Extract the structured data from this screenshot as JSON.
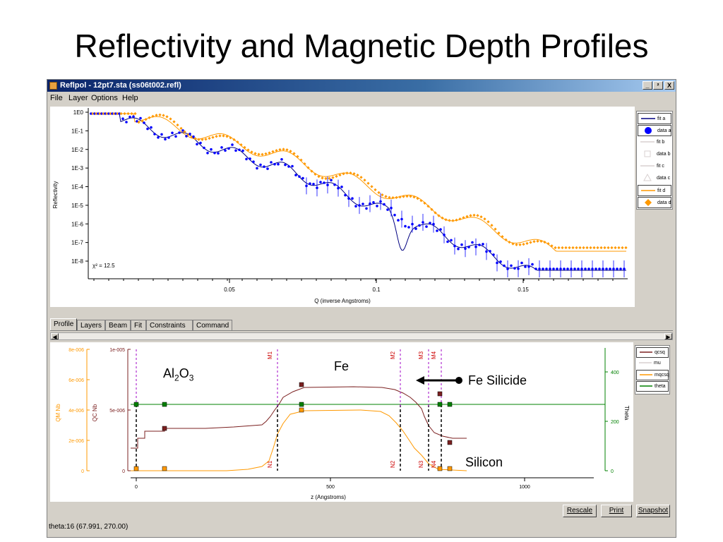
{
  "slide": {
    "title": "Reflectivity and Magnetic Depth Profiles"
  },
  "window": {
    "title": "Reflpol - 12pt7.sta (ss06t002.refl)",
    "controls": [
      "_",
      "²",
      "X"
    ],
    "menu": [
      "File",
      "Layer",
      "Options",
      "Help"
    ]
  },
  "refl_plot": {
    "chi2": "χ² = 12.5",
    "ylabel": "Reflectivity",
    "xlabel": "Q (inverse Angstroms)",
    "yticks": [
      "1E0",
      "1E-1",
      "1E-2",
      "1E-3",
      "1E-4",
      "1E-5",
      "1E-6",
      "1E-7",
      "1E-8"
    ],
    "xticks": [
      "0.05",
      "0.1",
      "0.15"
    ],
    "legend": [
      {
        "label": "fit a",
        "kind": "line",
        "color": "#000080",
        "selected": true
      },
      {
        "label": "data a",
        "kind": "dot",
        "color": "#0000ff",
        "selected": true
      },
      {
        "label": "fit b",
        "kind": "line",
        "color": "#d8d0d0",
        "selected": false
      },
      {
        "label": "data b",
        "kind": "square",
        "color": "#d8d0d0",
        "selected": false
      },
      {
        "label": "fit c",
        "kind": "line",
        "color": "#d8d0d0",
        "selected": false
      },
      {
        "label": "data c",
        "kind": "triangle",
        "color": "#d8d0d0",
        "selected": false
      },
      {
        "label": "fit d",
        "kind": "line",
        "color": "#ff9900",
        "selected": true
      },
      {
        "label": "data d",
        "kind": "diamond",
        "color": "#ff9900",
        "selected": true
      }
    ]
  },
  "tabs": [
    "Profile",
    "Layers",
    "Beam",
    "Fit",
    "Constraints",
    "Command"
  ],
  "active_tab": "Profile",
  "profile_plot": {
    "qm_label": "QM Nb",
    "qc_label": "QC Nb",
    "theta_label": "Theta",
    "xlabel": "z (Angstroms)",
    "qm_ticks": [
      "8e-006",
      "6e-006",
      "4e-006",
      "2e-006",
      "0"
    ],
    "qc_ticks": [
      "1e-005",
      "5e-006",
      "0"
    ],
    "theta_ticks": [
      "400",
      "200",
      "0"
    ],
    "xticks": [
      "0",
      "500",
      "1000"
    ],
    "markers_top": [
      "M1",
      "M2",
      "M3",
      "M4"
    ],
    "markers_bottom": [
      "N1",
      "N2",
      "N3",
      "N4"
    ],
    "legend": [
      {
        "label": "qcsq",
        "color": "#7b2020",
        "selected": true
      },
      {
        "label": "mu",
        "color": "#d8d0d0",
        "selected": false
      },
      {
        "label": "mqcsq",
        "color": "#ff9900",
        "selected": true
      },
      {
        "label": "theta",
        "color": "#008000",
        "selected": true
      }
    ]
  },
  "annotations": {
    "al2o3_main": "Al",
    "al2o3_sub1": "2",
    "al2o3_mid": "O",
    "al2o3_sub2": "3",
    "fe": "Fe",
    "fe_silicide": "Fe Silicide",
    "silicon": "Silicon"
  },
  "buttons": {
    "rescale": "Rescale",
    "print": "Print",
    "snapshot": "Snapshot"
  },
  "status": "theta:16 (67.991, 270.00)"
}
